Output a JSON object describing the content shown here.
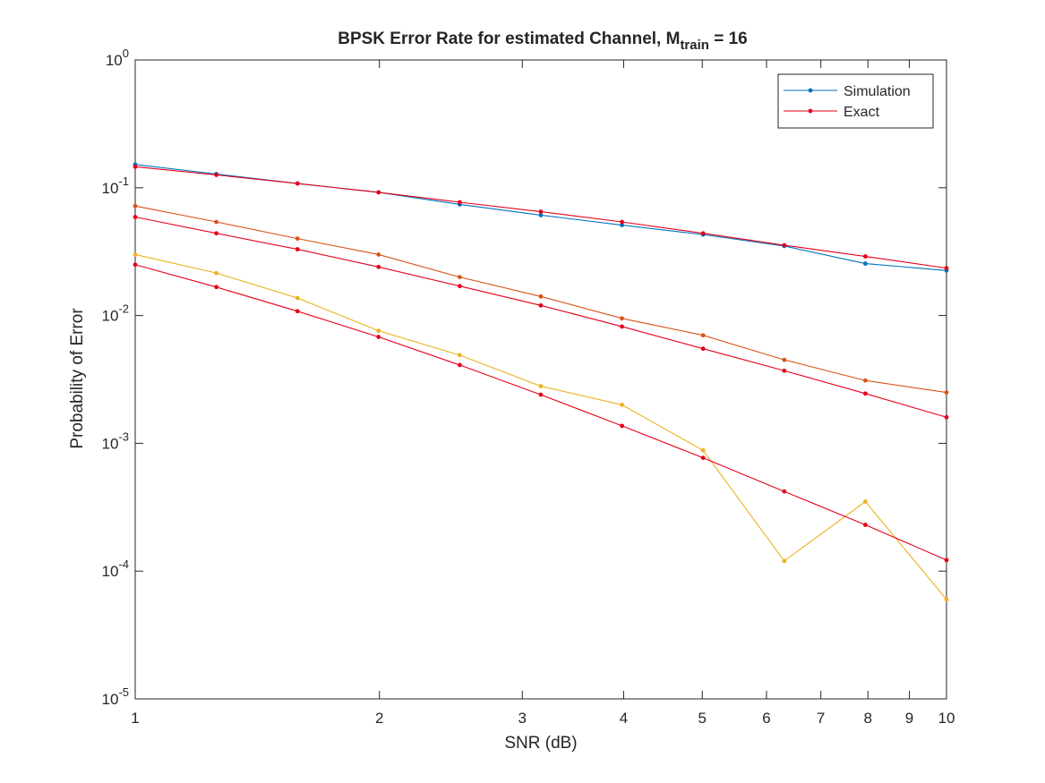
{
  "chart_data": {
    "type": "line",
    "title": "BPSK Error Rate for estimated Channel, M",
    "title_subscript": "train",
    "title_suffix": " = 16",
    "xlabel": "SNR (dB)",
    "ylabel": "Probability of Error",
    "xlim": [
      1,
      10
    ],
    "ylim": [
      1e-05,
      1
    ],
    "yscale": "log",
    "grid": false,
    "legend_position": "top-right",
    "x_ticks": [
      "1",
      "2",
      "3",
      "4",
      "5",
      "6",
      "7",
      "8",
      "9",
      "10"
    ],
    "y_ticks": [
      {
        "base": "10",
        "exp": "0"
      },
      {
        "base": "10",
        "exp": "-1"
      },
      {
        "base": "10",
        "exp": "-2"
      },
      {
        "base": "10",
        "exp": "-3"
      },
      {
        "base": "10",
        "exp": "-4"
      },
      {
        "base": "10",
        "exp": "-5"
      }
    ],
    "x": [
      1,
      1.259,
      1.585,
      1.995,
      2.512,
      3.162,
      3.981,
      5.012,
      6.31,
      7.943,
      10
    ],
    "series": [
      {
        "name": "Simulation",
        "color": "#0072BD",
        "values": [
          0.152,
          0.128,
          0.108,
          0.092,
          0.074,
          0.061,
          0.051,
          0.043,
          0.035,
          0.0255,
          0.0225
        ],
        "in_legend": true
      },
      {
        "name": "Exact",
        "color": "#E6001A",
        "values": [
          0.146,
          0.126,
          0.108,
          0.092,
          0.077,
          0.065,
          0.054,
          0.044,
          0.0355,
          0.029,
          0.0235
        ],
        "in_legend": true
      },
      {
        "color": "#D95319",
        "values": [
          0.072,
          0.054,
          0.04,
          0.03,
          0.02,
          0.0141,
          0.0095,
          0.007,
          0.0045,
          0.0031,
          0.0025
        ],
        "in_legend": false
      },
      {
        "color": "#E6001A",
        "values": [
          0.059,
          0.044,
          0.033,
          0.024,
          0.017,
          0.012,
          0.0082,
          0.0055,
          0.0037,
          0.00245,
          0.0016
        ],
        "in_legend": false
      },
      {
        "color": "#EDB120",
        "values": [
          0.03,
          0.0215,
          0.0137,
          0.0076,
          0.0049,
          0.0028,
          0.002,
          0.00088,
          0.00012,
          0.00035,
          6e-05
        ],
        "in_legend": false
      },
      {
        "color": "#E6001A",
        "values": [
          0.025,
          0.0167,
          0.0108,
          0.0068,
          0.0041,
          0.0024,
          0.00137,
          0.00077,
          0.00042,
          0.00023,
          0.000122
        ],
        "in_legend": false
      }
    ]
  }
}
